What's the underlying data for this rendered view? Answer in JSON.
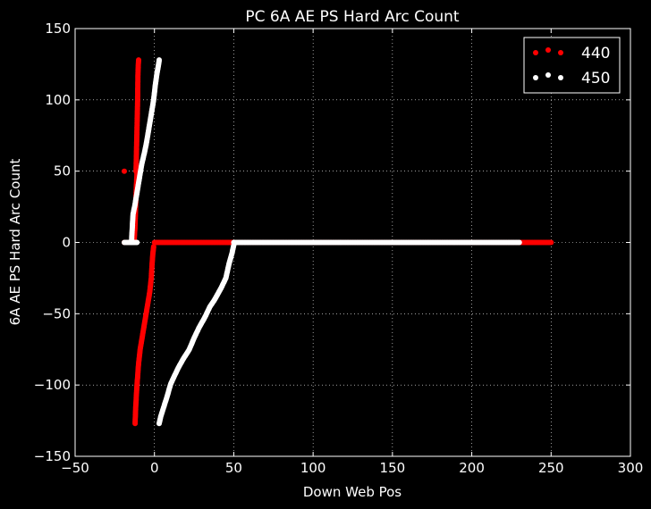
{
  "chart_data": {
    "type": "scatter",
    "title": "PC 6A AE PS Hard Arc Count",
    "xlabel": "Down Web Pos",
    "ylabel": "6A AE PS Hard Arc Count",
    "xlim": [
      -50,
      300
    ],
    "ylim": [
      -150,
      150
    ],
    "xticks": [
      -50,
      0,
      50,
      100,
      150,
      200,
      250,
      300
    ],
    "yticks": [
      -150,
      -100,
      -50,
      0,
      50,
      100,
      150
    ],
    "grid": true,
    "background": "#000000",
    "legend_position": "top-right",
    "series": [
      {
        "name": "440",
        "color": "#ff0000",
        "segments": [
          {
            "x": [
              -11.6,
              -11.4,
              -11.2,
              -11.0,
              -10.8,
              -10.6,
              -10.5,
              -10.4,
              -10.2,
              -10.0
            ],
            "y": [
              50,
              60,
              70,
              80,
              90,
              100,
              110,
              118,
              124,
              128
            ]
          },
          {
            "x": [
              -12.8,
              -12.6,
              -12.3,
              -12.0,
              -11.7,
              -11.4,
              -11.1,
              -10.9
            ],
            "y": [
              0,
              5,
              10,
              20,
              30,
              40,
              46,
              52
            ]
          },
          {
            "x": [
              -19
            ],
            "y": [
              50
            ]
          },
          {
            "x": [
              -19,
              -17,
              -15
            ],
            "y": [
              0,
              0,
              0
            ]
          },
          {
            "x": [
              0,
              10,
              20,
              30,
              40,
              50,
              100,
              150,
              200,
              230,
              240,
              250
            ],
            "y": [
              0,
              0,
              0,
              0,
              0,
              0,
              0,
              0,
              0,
              0,
              0,
              0
            ]
          },
          {
            "x": [
              -0.5,
              -1.0,
              -1.5,
              -2.0,
              -3.0,
              -4.5,
              -6.0,
              -7.5,
              -9.0,
              -10.0,
              -11.0,
              -11.8,
              -12.2
            ],
            "y": [
              -3,
              -8,
              -15,
              -25,
              -35,
              -45,
              -55,
              -65,
              -75,
              -85,
              -100,
              -115,
              -127
            ]
          }
        ]
      },
      {
        "name": "450",
        "color": "#ffffff",
        "segments": [
          {
            "x": [
              -19,
              -17,
              -15,
              -13,
              -11
            ],
            "y": [
              0,
              0,
              0,
              0,
              0
            ]
          },
          {
            "x": [
              -14.5,
              -14.0,
              -13.5,
              -12.5,
              -11.0,
              -9.5,
              -8.0,
              -6.5,
              -5.0,
              -3.5,
              -2.0,
              -0.5,
              0.5,
              1.5,
              2.5,
              3.0
            ],
            "y": [
              0,
              10,
              20,
              25,
              35,
              45,
              55,
              62,
              70,
              80,
              90,
              100,
              110,
              118,
              124,
              128
            ]
          },
          {
            "x": [
              50,
              60,
              80,
              100,
              150,
              200,
              230
            ],
            "y": [
              0,
              0,
              0,
              0,
              0,
              0,
              0
            ]
          },
          {
            "x": [
              50,
              49,
              47,
              45,
              42,
              38,
              35,
              32,
              28,
              25,
              22,
              18,
              15,
              12,
              10,
              8,
              6,
              4,
              3
            ],
            "y": [
              -2,
              -7,
              -15,
              -25,
              -32,
              -40,
              -45,
              -52,
              -60,
              -67,
              -75,
              -82,
              -88,
              -95,
              -100,
              -108,
              -115,
              -122,
              -127
            ]
          }
        ]
      }
    ]
  }
}
